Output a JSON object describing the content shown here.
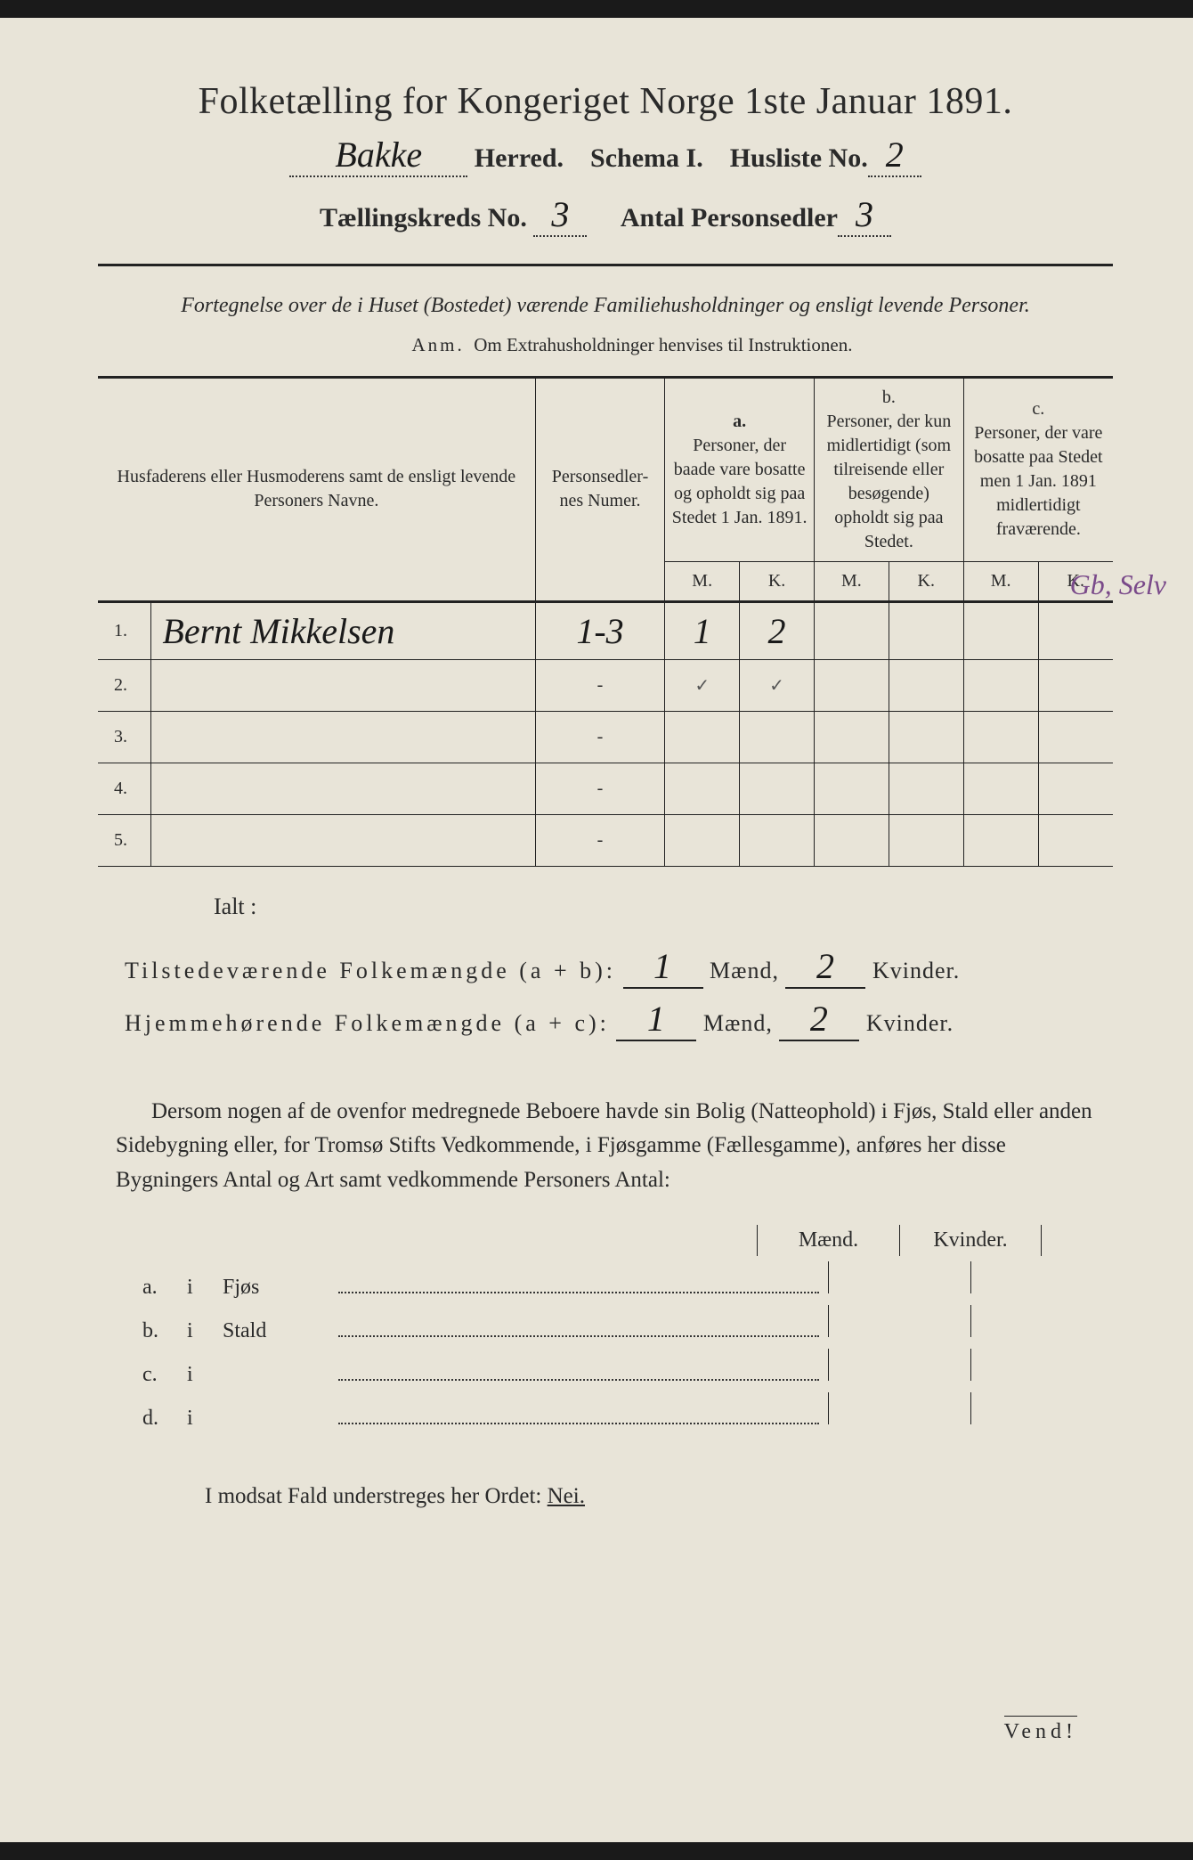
{
  "header": {
    "title": "Folketælling for Kongeriget Norge 1ste Januar 1891.",
    "herred_value": "Bakke",
    "herred_label": "Herred.",
    "schema_label": "Schema I.",
    "husliste_label": "Husliste No.",
    "husliste_value": "2",
    "kreds_label": "Tællingskreds No.",
    "kreds_value": "3",
    "personsedler_label": "Antal Personsedler",
    "personsedler_value": "3"
  },
  "fortegnelse": {
    "text": "Fortegnelse over de i Huset (Bostedet) værende Familiehusholdninger og ensligt levende Personer.",
    "anm_label": "Anm.",
    "anm_text": "Om Extrahusholdninger henvises til Instruktionen."
  },
  "table": {
    "col1": "Husfaderens eller Husmoderens samt de ensligt levende Personers Navne.",
    "col2": "Personsedler-nes Numer.",
    "col_a_label": "a.",
    "col_a": "Personer, der baade vare bosatte og opholdt sig paa Stedet 1 Jan. 1891.",
    "col_b_label": "b.",
    "col_b": "Personer, der kun midlertidigt (som tilreisende eller besøgende) opholdt sig paa Stedet.",
    "col_c_label": "c.",
    "col_c": "Personer, der vare bosatte paa Stedet men 1 Jan. 1891 midlertidigt fraværende.",
    "mk_m": "M.",
    "mk_k": "K.",
    "rows": [
      {
        "num": "1.",
        "name": "Bernt Mikkelsen",
        "pnum": "1-3",
        "am": "1",
        "ak": "2",
        "bm": "",
        "bk": "",
        "cm": "",
        "ck": ""
      },
      {
        "num": "2.",
        "name": "",
        "pnum": "-",
        "am": "✓",
        "ak": "✓",
        "bm": "",
        "bk": "",
        "cm": "",
        "ck": ""
      },
      {
        "num": "3.",
        "name": "",
        "pnum": "-",
        "am": "",
        "ak": "",
        "bm": "",
        "bk": "",
        "cm": "",
        "ck": ""
      },
      {
        "num": "4.",
        "name": "",
        "pnum": "-",
        "am": "",
        "ak": "",
        "bm": "",
        "bk": "",
        "cm": "",
        "ck": ""
      },
      {
        "num": "5.",
        "name": "",
        "pnum": "-",
        "am": "",
        "ak": "",
        "bm": "",
        "bk": "",
        "cm": "",
        "ck": ""
      }
    ],
    "margin_note": "Gb, Selv"
  },
  "totals": {
    "ialt": "Ialt :",
    "row1_label": "Tilstedeværende Folkemængde (a + b):",
    "row1_m": "1",
    "row1_k": "2",
    "row2_label": "Hjemmehørende Folkemængde (a + c):",
    "row2_m": "1",
    "row2_k": "2",
    "maend": "Mænd,",
    "kvinder": "Kvinder."
  },
  "paragraph": "Dersom nogen af de ovenfor medregnede Beboere havde sin Bolig (Natteophold) i Fjøs, Stald eller anden Sidebygning eller, for Tromsø Stifts Vedkommende, i Fjøsgamme (Fællesgamme), anføres her disse Bygningers Antal og Art samt vedkommende Personers Antal:",
  "mk": {
    "m": "Mænd.",
    "k": "Kvinder."
  },
  "abcd": [
    {
      "lbl": "a.",
      "i": "i",
      "type": "Fjøs"
    },
    {
      "lbl": "b.",
      "i": "i",
      "type": "Stald"
    },
    {
      "lbl": "c.",
      "i": "i",
      "type": ""
    },
    {
      "lbl": "d.",
      "i": "i",
      "type": ""
    }
  ],
  "nei_line": {
    "pre": "I modsat Fald understreges her Ordet: ",
    "nei": "Nei."
  },
  "vend": "Vend!",
  "colors": {
    "paper": "#e8e4d8",
    "ink": "#2a2a2a",
    "handwriting": "#1a1a1a",
    "purple": "#7a4a8a"
  }
}
